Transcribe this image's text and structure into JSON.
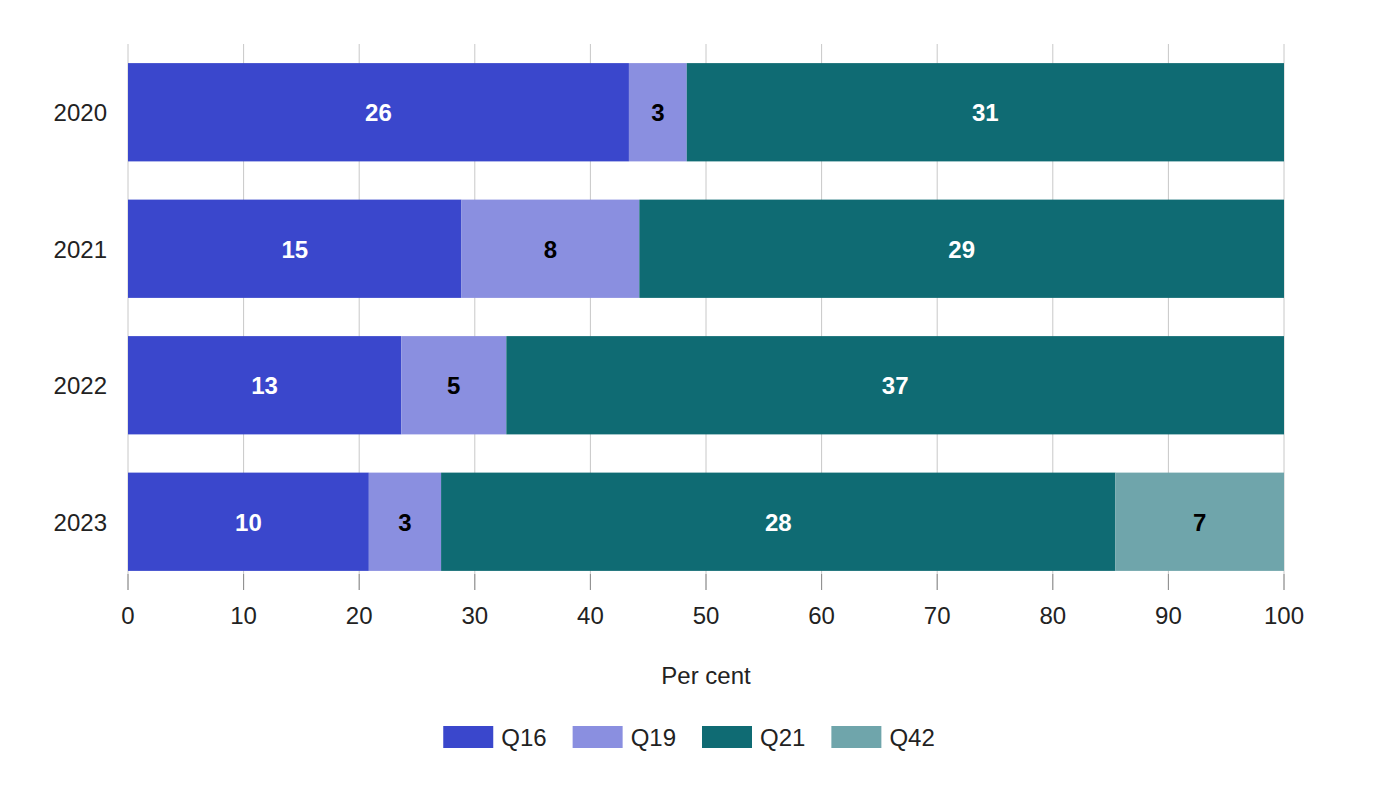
{
  "chart_data": {
    "type": "bar",
    "orientation": "horizontal",
    "stacked": "percent",
    "x_label": "Per cent",
    "categories": [
      "2020",
      "2021",
      "2022",
      "2023"
    ],
    "series": [
      {
        "name": "Q16",
        "color": "#3a47cc",
        "values": [
          26,
          15,
          13,
          10
        ]
      },
      {
        "name": "Q19",
        "color": "#8a8fe0",
        "values": [
          3,
          8,
          5,
          3
        ]
      },
      {
        "name": "Q21",
        "color": "#0f6b73",
        "values": [
          31,
          29,
          37,
          28
        ]
      },
      {
        "name": "Q42",
        "color": "#6fa5ab",
        "values": [
          null,
          null,
          null,
          7
        ]
      }
    ],
    "xlim": [
      0,
      100
    ],
    "xticks": [
      0,
      10,
      20,
      30,
      40,
      50,
      60,
      70,
      80,
      90,
      100
    ],
    "grid": true,
    "legend": "bottom",
    "data_labels": true
  }
}
